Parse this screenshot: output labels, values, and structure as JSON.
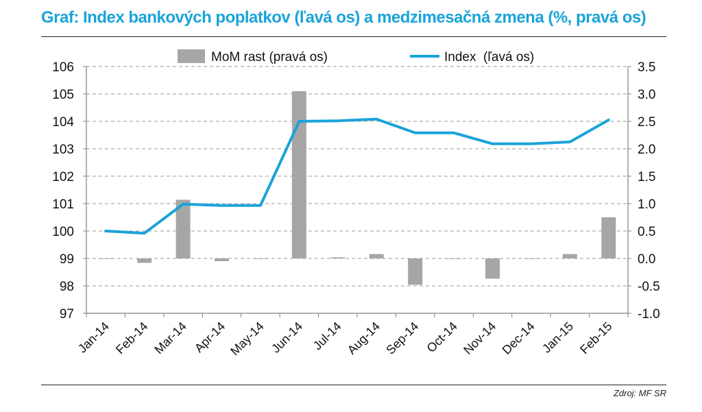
{
  "title": "Graf: Index bankových poplatkov (ľavá os) a medzimesačná zmena (%, pravá os)",
  "source": "Zdroj: MF SR",
  "colors": {
    "title": "#1aa3d9",
    "line": "#1aa3d9",
    "bar": "#a6a6a6"
  },
  "chart_data": {
    "type": "bar+line",
    "categories": [
      "Jan-14",
      "Feb-14",
      "Mar-14",
      "Apr-14",
      "May-14",
      "Jun-14",
      "Jul-14",
      "Aug-14",
      "Sep-14",
      "Oct-14",
      "Nov-14",
      "Dec-14",
      "Jan-15",
      "Feb-15"
    ],
    "series": [
      {
        "name": "MoM rast (pravá os)",
        "type": "bar",
        "axis": "right",
        "values": [
          0.0,
          -0.08,
          1.07,
          -0.05,
          0.0,
          3.05,
          0.02,
          0.08,
          -0.48,
          0.0,
          -0.37,
          0.0,
          0.08,
          0.75
        ]
      },
      {
        "name": "Index  (ľavá os)",
        "type": "line",
        "axis": "left",
        "values": [
          100.0,
          99.92,
          100.98,
          100.93,
          100.93,
          104.0,
          104.02,
          104.08,
          103.58,
          103.58,
          103.18,
          103.18,
          103.25,
          104.05
        ]
      }
    ],
    "left_axis": {
      "min": 97,
      "max": 106,
      "ticks": [
        "97",
        "98",
        "99",
        "100",
        "101",
        "102",
        "103",
        "104",
        "105",
        "106"
      ]
    },
    "right_axis": {
      "min": -1.0,
      "max": 3.5,
      "ticks": [
        "-1.0",
        "-0.5",
        "0.0",
        "0.5",
        "1.0",
        "1.5",
        "2.0",
        "2.5",
        "3.0",
        "3.5"
      ]
    },
    "grid": "horizontal dashed",
    "legend": "top"
  }
}
